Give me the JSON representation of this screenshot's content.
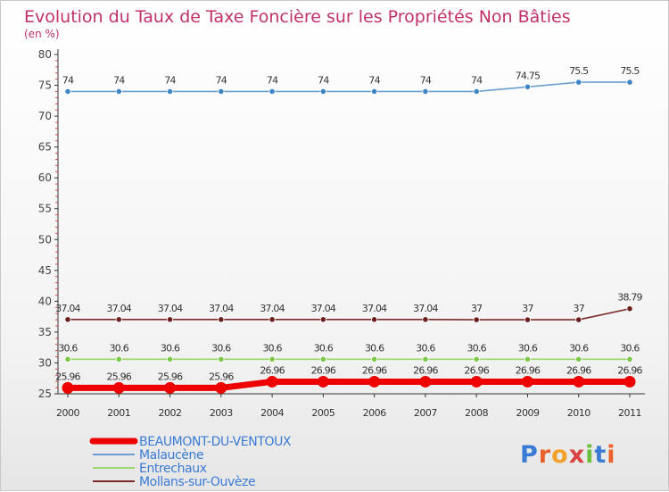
{
  "chart_data": {
    "type": "line",
    "title": "Evolution du Taux de Taxe Foncière sur les Propriétés Non Bâties",
    "ylabel": "(en %)",
    "xlabel": "",
    "ylim": [
      25,
      80
    ],
    "ytick_step": 5,
    "grid": false,
    "legend_position": "bottom-left",
    "categories": [
      "2000",
      "2001",
      "2002",
      "2003",
      "2004",
      "2005",
      "2006",
      "2007",
      "2008",
      "2009",
      "2010",
      "2011"
    ],
    "series": [
      {
        "name": "Malaucène",
        "color": "#6a9fd0",
        "marker": "#3d85c6",
        "values": [
          74,
          74,
          74,
          74,
          74,
          74,
          74,
          74,
          74,
          74.75,
          75.5,
          75.5
        ],
        "labels": [
          "74",
          "74",
          "74",
          "74",
          "74",
          "74",
          "74",
          "74",
          "74",
          "74.75",
          "75.5",
          "75.5"
        ]
      },
      {
        "name": "Mollans-sur-Ouvèze",
        "color": "#7b2a2a",
        "marker": "#6b1f1f",
        "values": [
          37.04,
          37.04,
          37.04,
          37.04,
          37.04,
          37.04,
          37.04,
          37.04,
          37,
          37,
          37,
          38.79
        ],
        "labels": [
          "37.04",
          "37.04",
          "37.04",
          "37.04",
          "37.04",
          "37.04",
          "37.04",
          "37.04",
          "37",
          "37",
          "37",
          "38.79"
        ]
      },
      {
        "name": "Entrechaux",
        "color": "#9ad86a",
        "marker": "#7cc84a",
        "values": [
          30.6,
          30.6,
          30.6,
          30.6,
          30.6,
          30.6,
          30.6,
          30.6,
          30.6,
          30.6,
          30.6,
          30.6
        ],
        "labels": [
          "30.6",
          "30.6",
          "30.6",
          "30.6",
          "30.6",
          "30.6",
          "30.6",
          "30.6",
          "30.6",
          "30.6",
          "30.6",
          "30.6"
        ]
      },
      {
        "name": "BEAUMONT-DU-VENTOUX",
        "color": "#ee0000",
        "marker": "#ee0000",
        "values": [
          25.96,
          25.96,
          25.96,
          25.96,
          26.96,
          26.96,
          26.96,
          26.96,
          26.96,
          26.96,
          26.96,
          26.96
        ],
        "labels": [
          "25.96",
          "25.96",
          "25.96",
          "25.96",
          "26.96",
          "26.96",
          "26.96",
          "26.96",
          "26.96",
          "26.96",
          "26.96",
          "26.96"
        ]
      }
    ],
    "legend": [
      {
        "name": "BEAUMONT-DU-VENTOUX",
        "color": "#ee0000",
        "text_color": "#3a7bd5"
      },
      {
        "name": "Malaucène",
        "color": "#6a9fd0",
        "text_color": "#3a7bd5"
      },
      {
        "name": "Entrechaux",
        "color": "#9ad86a",
        "text_color": "#3a7bd5"
      },
      {
        "name": "Mollans-sur-Ouvèze",
        "color": "#7b2a2a",
        "text_color": "#3a7bd5"
      }
    ]
  },
  "logo": {
    "text": "Proxiti",
    "letter_colors": [
      "#3a7bd5",
      "#e8622c",
      "#f2a12a",
      "#d94343",
      "#6cbf3d",
      "#3a7bd5",
      "#e8622c"
    ]
  }
}
